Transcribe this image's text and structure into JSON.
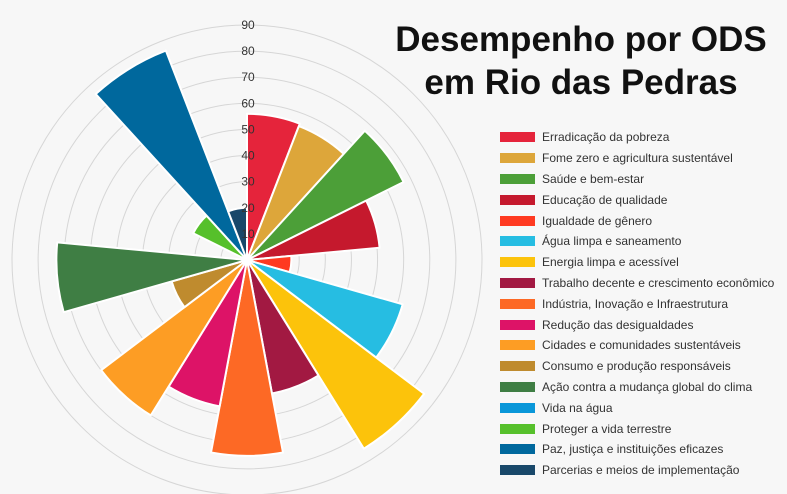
{
  "chart_data": {
    "type": "polar-area",
    "title_lines": [
      "Desempenho por ODS",
      "em Rio das Pedras"
    ],
    "radial_ticks": [
      "10",
      "20",
      "30",
      "40",
      "50",
      "60",
      "70",
      "80",
      "90"
    ],
    "rmax": 90,
    "legend_position": "right",
    "series": [
      {
        "name": "Erradicação da pobreza",
        "value": 56,
        "color": "#e5243b"
      },
      {
        "name": "Fome zero e agricultura sustentável",
        "value": 55,
        "color": "#dda63a"
      },
      {
        "name": "Saúde e bem-estar",
        "value": 67,
        "color": "#4c9f38"
      },
      {
        "name": "Educação de qualidade",
        "value": 51,
        "color": "#c5192d"
      },
      {
        "name": "Igualdade de gênero",
        "value": 17,
        "color": "#ff3a21"
      },
      {
        "name": "Água limpa e saneamento",
        "value": 62,
        "color": "#26bde2"
      },
      {
        "name": "Energia limpa e acessível",
        "value": 85,
        "color": "#fcc30b"
      },
      {
        "name": "Trabalho decente e crescimento econômico",
        "value": 52,
        "color": "#a21942"
      },
      {
        "name": "Indústria, Inovação e Infraestrutura",
        "value": 75,
        "color": "#fd6925"
      },
      {
        "name": "Redução das desigualdades",
        "value": 57,
        "color": "#dd1367"
      },
      {
        "name": "Cidades e comunidades sustentáveis",
        "value": 70,
        "color": "#fd9d24"
      },
      {
        "name": "Consumo e produção responsáveis",
        "value": 30,
        "color": "#bf8b2e"
      },
      {
        "name": "Ação contra a mudança global do clima",
        "value": 73,
        "color": "#3f7e44"
      },
      {
        "name": "Vida na água",
        "value": 0,
        "color": "#0a97d9"
      },
      {
        "name": "Proteger a vida terrestre",
        "value": 23,
        "color": "#56c02b"
      },
      {
        "name": "Paz, justiça e instituições eficazes",
        "value": 86,
        "color": "#00689d"
      },
      {
        "name": "Parcerias e meios de implementação",
        "value": 20,
        "color": "#19486a"
      }
    ]
  }
}
